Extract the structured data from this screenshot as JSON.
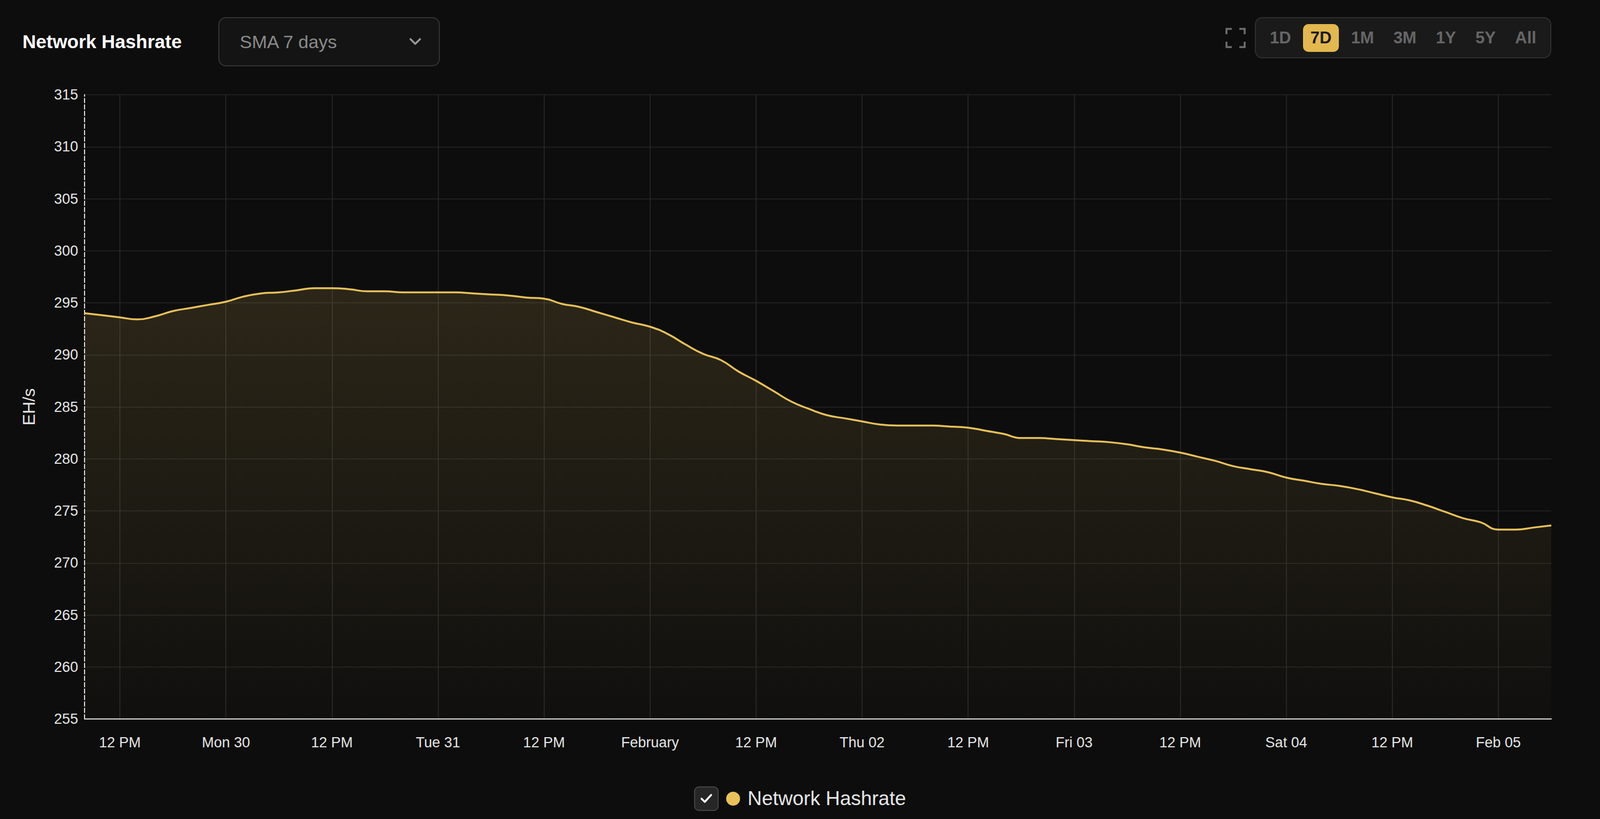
{
  "chart_data": {
    "type": "line",
    "title": "Network Hashrate",
    "y_label": "EH/s",
    "categories": [
      null,
      null,
      "12 PM",
      null,
      null,
      null,
      null,
      null,
      "Mon 30",
      null,
      null,
      null,
      null,
      null,
      "12 PM",
      null,
      null,
      null,
      null,
      null,
      "Tue 31",
      null,
      null,
      null,
      null,
      null,
      "12 PM",
      null,
      null,
      null,
      null,
      null,
      "February",
      null,
      null,
      null,
      null,
      null,
      "12 PM",
      null,
      null,
      null,
      null,
      null,
      "Thu 02",
      null,
      null,
      null,
      null,
      null,
      "12 PM",
      null,
      null,
      null,
      null,
      null,
      "Fri 03",
      null,
      null,
      null,
      null,
      null,
      "12 PM",
      null,
      null,
      null,
      null,
      null,
      "Sat 04",
      null,
      null,
      null,
      null,
      null,
      "12 PM",
      null,
      null,
      null,
      null,
      null,
      "Feb 05",
      null,
      null,
      null
    ],
    "series": [
      {
        "name": "Network Hashrate",
        "color": "#e8c15a",
        "values": [
          294.0,
          293.8,
          293.6,
          293.4,
          293.7,
          294.2,
          294.5,
          294.8,
          295.1,
          295.6,
          295.9,
          296.0,
          296.2,
          296.4,
          296.4,
          296.3,
          296.1,
          296.1,
          296.0,
          296.0,
          296.0,
          296.0,
          295.9,
          295.8,
          295.7,
          295.5,
          295.4,
          294.9,
          294.6,
          294.1,
          293.6,
          293.1,
          292.7,
          292.0,
          291.0,
          290.1,
          289.5,
          288.4,
          287.5,
          286.5,
          285.5,
          284.8,
          284.2,
          283.9,
          283.6,
          283.3,
          283.2,
          283.2,
          283.2,
          283.1,
          283.0,
          282.7,
          282.4,
          282.0,
          282.0,
          281.9,
          281.8,
          281.7,
          281.6,
          281.4,
          281.1,
          280.9,
          280.6,
          280.2,
          279.8,
          279.3,
          279.0,
          278.7,
          278.2,
          277.9,
          277.6,
          277.4,
          277.1,
          276.7,
          276.3,
          276.0,
          275.5,
          274.9,
          274.3,
          273.9,
          273.2,
          273.2,
          273.4,
          273.6
        ]
      }
    ],
    "ylim": [
      255,
      315
    ],
    "yticks": [
      255,
      260,
      265,
      270,
      275,
      280,
      285,
      290,
      295,
      300,
      305,
      310,
      315
    ],
    "grid": true,
    "legend": "bottom"
  },
  "controls": {
    "dropdown": "SMA 7 days",
    "ranges": [
      "1D",
      "7D",
      "1M",
      "3M",
      "1Y",
      "5Y",
      "All"
    ],
    "active_range": "7D"
  }
}
